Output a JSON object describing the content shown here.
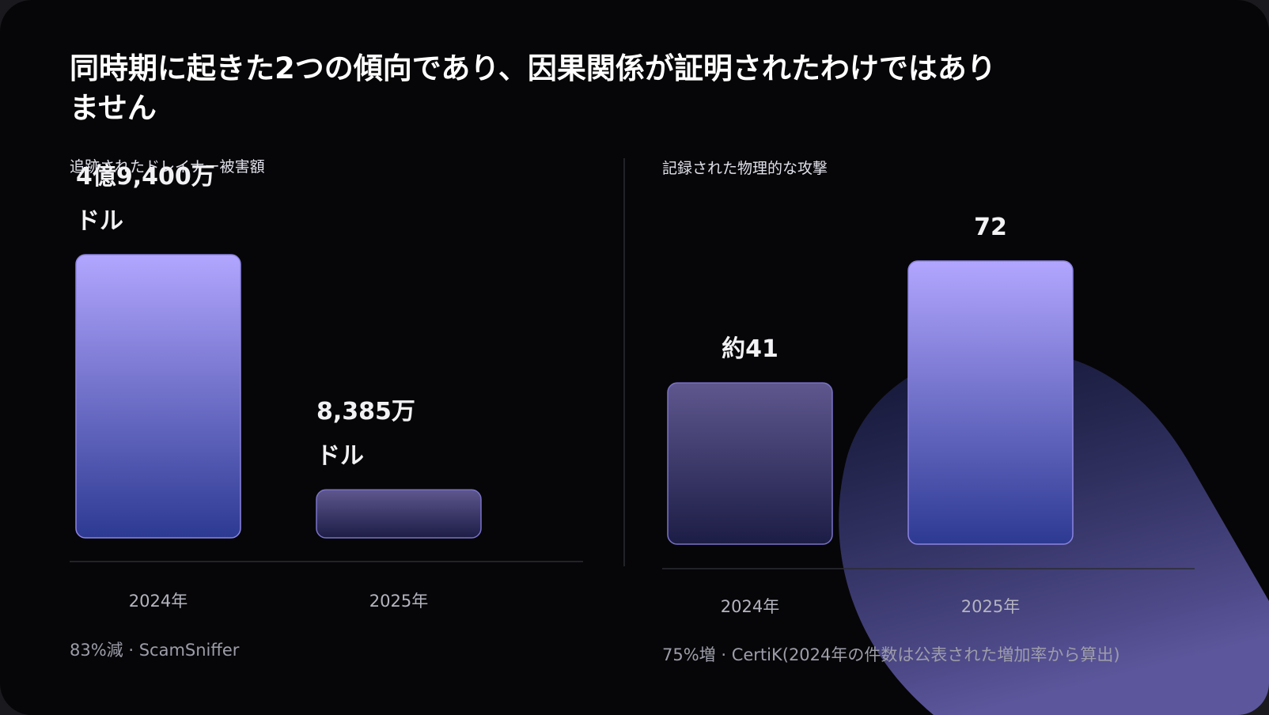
{
  "title": "同時期に起きた2つの傾向であり、因果関係が証明されたわけではありません",
  "chart_data": [
    {
      "type": "bar",
      "title": "追跡されたドレイナー被害額",
      "categories": [
        "2024年",
        "2025年"
      ],
      "values": [
        494000000,
        83850000
      ],
      "value_labels": [
        "4億9,400万\nドル",
        "8,385万\nドル"
      ],
      "note": "83%減 · ScamSniffer"
    },
    {
      "type": "bar",
      "title": "記録された物理的な攻撃",
      "categories": [
        "2024年",
        "2025年"
      ],
      "values": [
        41,
        72
      ],
      "value_labels": [
        "約41",
        "72"
      ],
      "note": "75%増 · CertiK(2024年の件数は公表された増加率から算出)"
    }
  ]
}
